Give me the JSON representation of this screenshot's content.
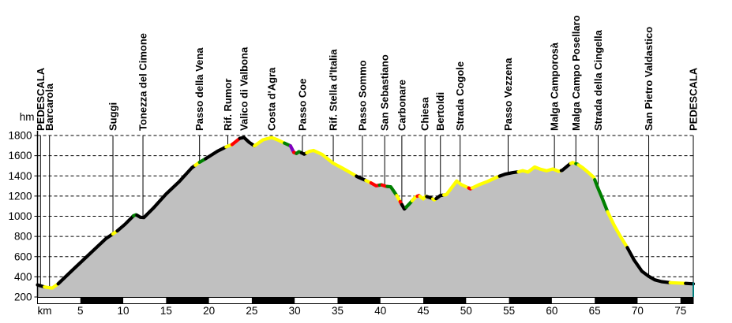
{
  "chart_data": {
    "type": "area",
    "title": "",
    "x_unit": "km",
    "y_unit": "hm",
    "x_range": [
      0,
      76.5
    ],
    "y_range": [
      200,
      1800
    ],
    "x_ticks": [
      5,
      10,
      15,
      20,
      25,
      30,
      35,
      40,
      45,
      50,
      55,
      60,
      65,
      70,
      75
    ],
    "y_ticks": [
      200,
      400,
      600,
      800,
      1000,
      1200,
      1400,
      1600,
      1800
    ],
    "grid": "dashed horizontal lines every 200 hm",
    "legend_position": "none",
    "fill_color": "#c0c0c0",
    "background_color": "#ffffff",
    "axis_color": "#000000",
    "end_edge_color": "#008080",
    "segment_colors": {
      "black": "#000000",
      "yellow": "#ffff00",
      "green": "#008000",
      "red": "#ff0000",
      "purple": "#8000c0"
    },
    "profile": [
      [
        0,
        320
      ],
      [
        0.8,
        300
      ],
      [
        1.7,
        288
      ],
      [
        2.4,
        330
      ],
      [
        4,
        460
      ],
      [
        6,
        620
      ],
      [
        8,
        780
      ],
      [
        8.8,
        825
      ],
      [
        9.3,
        855
      ],
      [
        10.2,
        920
      ],
      [
        11.2,
        1005
      ],
      [
        11.5,
        1015
      ],
      [
        12.0,
        990
      ],
      [
        12.4,
        987
      ],
      [
        13.5,
        1080
      ],
      [
        15,
        1220
      ],
      [
        16.5,
        1340
      ],
      [
        18,
        1480
      ],
      [
        18.8,
        1530
      ],
      [
        19.6,
        1570
      ],
      [
        21,
        1645
      ],
      [
        22.2,
        1695
      ],
      [
        22.7,
        1710
      ],
      [
        23.6,
        1772
      ],
      [
        24.1,
        1780
      ],
      [
        24.7,
        1732
      ],
      [
        25.3,
        1697
      ],
      [
        26.3,
        1757
      ],
      [
        27.3,
        1780
      ],
      [
        28.0,
        1757
      ],
      [
        28.8,
        1725
      ],
      [
        29.5,
        1698
      ],
      [
        29.9,
        1632
      ],
      [
        30.2,
        1622
      ],
      [
        30.5,
        1640
      ],
      [
        30.8,
        1628
      ],
      [
        31.1,
        1615
      ],
      [
        31.7,
        1642
      ],
      [
        32.2,
        1652
      ],
      [
        33.2,
        1613
      ],
      [
        34.5,
        1525
      ],
      [
        35.5,
        1480
      ],
      [
        36.5,
        1432
      ],
      [
        37.3,
        1392
      ],
      [
        38.2,
        1358
      ],
      [
        38.9,
        1330
      ],
      [
        39.5,
        1302
      ],
      [
        40.1,
        1312
      ],
      [
        40.6,
        1297
      ],
      [
        41.2,
        1292
      ],
      [
        41.9,
        1205
      ],
      [
        42.4,
        1130
      ],
      [
        42.8,
        1072
      ],
      [
        43.4,
        1125
      ],
      [
        44.1,
        1192
      ],
      [
        44.5,
        1205
      ],
      [
        45.0,
        1172
      ],
      [
        45.3,
        1198
      ],
      [
        45.9,
        1182
      ],
      [
        46.3,
        1162
      ],
      [
        47.0,
        1205
      ],
      [
        47.7,
        1215
      ],
      [
        48.9,
        1350
      ],
      [
        49.4,
        1315
      ],
      [
        50.5,
        1272
      ],
      [
        51.5,
        1312
      ],
      [
        52.5,
        1345
      ],
      [
        53.6,
        1388
      ],
      [
        54.6,
        1418
      ],
      [
        55.4,
        1432
      ],
      [
        56.1,
        1440
      ],
      [
        56.6,
        1452
      ],
      [
        57.2,
        1438
      ],
      [
        58.0,
        1488
      ],
      [
        58.7,
        1465
      ],
      [
        59.4,
        1450
      ],
      [
        60.1,
        1468
      ],
      [
        60.8,
        1445
      ],
      [
        61.2,
        1455
      ],
      [
        62.1,
        1518
      ],
      [
        62.4,
        1532
      ],
      [
        63.0,
        1515
      ],
      [
        63.6,
        1480
      ],
      [
        64.3,
        1430
      ],
      [
        64.9,
        1385
      ],
      [
        65.3,
        1295
      ],
      [
        65.8,
        1195
      ],
      [
        66.5,
        1045
      ],
      [
        67.3,
        905
      ],
      [
        68.0,
        800
      ],
      [
        68.8,
        690
      ],
      [
        69.6,
        565
      ],
      [
        70.5,
        455
      ],
      [
        71.3,
        405
      ],
      [
        72.0,
        370
      ],
      [
        72.8,
        352
      ],
      [
        73.8,
        342
      ],
      [
        74.8,
        338
      ],
      [
        75.8,
        334
      ],
      [
        76.5,
        330
      ]
    ],
    "gradient_segments": [
      [
        "black",
        0,
        0.8
      ],
      [
        "yellow",
        0.8,
        2.4
      ],
      [
        "black",
        2.4,
        8.8
      ],
      [
        "yellow",
        8.8,
        9.3
      ],
      [
        "black",
        9.3,
        11.2
      ],
      [
        "green",
        11.2,
        11.6
      ],
      [
        "black",
        11.6,
        18.4
      ],
      [
        "yellow",
        18.4,
        18.9
      ],
      [
        "green",
        18.9,
        19.6
      ],
      [
        "black",
        19.6,
        22.0
      ],
      [
        "yellow",
        22.0,
        22.7
      ],
      [
        "red",
        22.7,
        23.6
      ],
      [
        "black",
        23.6,
        25.3
      ],
      [
        "yellow",
        25.3,
        28.8
      ],
      [
        "green",
        28.8,
        29.5
      ],
      [
        "purple",
        29.5,
        29.9
      ],
      [
        "red",
        29.9,
        30.2
      ],
      [
        "green",
        30.2,
        30.8
      ],
      [
        "black",
        30.8,
        31.4
      ],
      [
        "yellow",
        31.4,
        37.2
      ],
      [
        "black",
        37.2,
        38.3
      ],
      [
        "yellow",
        38.3,
        38.9
      ],
      [
        "red",
        38.9,
        39.9
      ],
      [
        "green",
        39.9,
        40.2
      ],
      [
        "red",
        40.2,
        40.8
      ],
      [
        "green",
        40.8,
        41.9
      ],
      [
        "yellow",
        41.9,
        42.3
      ],
      [
        "red",
        42.3,
        42.5
      ],
      [
        "black",
        42.5,
        43.0
      ],
      [
        "green",
        43.0,
        43.7
      ],
      [
        "yellow",
        43.7,
        44.3
      ],
      [
        "red",
        44.3,
        44.6
      ],
      [
        "yellow",
        44.6,
        45.4
      ],
      [
        "black",
        45.4,
        46.1
      ],
      [
        "yellow",
        46.1,
        46.5
      ],
      [
        "black",
        46.5,
        47.4
      ],
      [
        "yellow",
        47.4,
        50.3
      ],
      [
        "red",
        50.3,
        50.7
      ],
      [
        "yellow",
        50.7,
        53.9
      ],
      [
        "black",
        53.9,
        56.1
      ],
      [
        "yellow",
        56.1,
        61.1
      ],
      [
        "black",
        61.1,
        62.2
      ],
      [
        "yellow",
        62.2,
        62.8
      ],
      [
        "green",
        62.8,
        63.1
      ],
      [
        "yellow",
        63.1,
        65.0
      ],
      [
        "green",
        65.0,
        66.5
      ],
      [
        "yellow",
        66.5,
        68.8
      ],
      [
        "black",
        68.8,
        73.8
      ],
      [
        "yellow",
        73.8,
        75.6
      ],
      [
        "black",
        75.6,
        76.5
      ]
    ],
    "markers": [
      {
        "km": 0.35,
        "label": "PEDESCALA"
      },
      {
        "km": 1.4,
        "label": "Barcarola"
      },
      {
        "km": 8.8,
        "label": "Suggi"
      },
      {
        "km": 12.3,
        "label": "Tonezza del Cimone"
      },
      {
        "km": 18.9,
        "label": "Passo della Vena"
      },
      {
        "km": 22.2,
        "label": "Rif. Rumor"
      },
      {
        "km": 24.1,
        "label": "Valico di Valbona"
      },
      {
        "km": 27.3,
        "label": "Costa d'Agra"
      },
      {
        "km": 30.9,
        "label": "Passo Coe"
      },
      {
        "km": 34.5,
        "label": "Rif. Stella d'Italia"
      },
      {
        "km": 37.9,
        "label": "Passo Sommo"
      },
      {
        "km": 40.5,
        "label": "San Sebastiano"
      },
      {
        "km": 42.5,
        "label": "Carbonare"
      },
      {
        "km": 45.2,
        "label": "Chiesa"
      },
      {
        "km": 47.0,
        "label": "Bertoldi"
      },
      {
        "km": 49.3,
        "label": "Strada Cogole"
      },
      {
        "km": 54.9,
        "label": "Passo Vezzena"
      },
      {
        "km": 60.3,
        "label": "Malga Camporosà"
      },
      {
        "km": 62.8,
        "label": "Malga Campo Posellaro"
      },
      {
        "km": 65.4,
        "label": "Strada della Cingella"
      },
      {
        "km": 71.3,
        "label": "San Pietro Valdastico"
      },
      {
        "km": 76.5,
        "label": "PEDESCALA"
      }
    ],
    "scalebar_black_ranges": [
      [
        5,
        10
      ],
      [
        15,
        20
      ],
      [
        25,
        30
      ],
      [
        35,
        40
      ],
      [
        45,
        50
      ],
      [
        55,
        60
      ],
      [
        65,
        70
      ],
      [
        75,
        76.5
      ]
    ]
  }
}
